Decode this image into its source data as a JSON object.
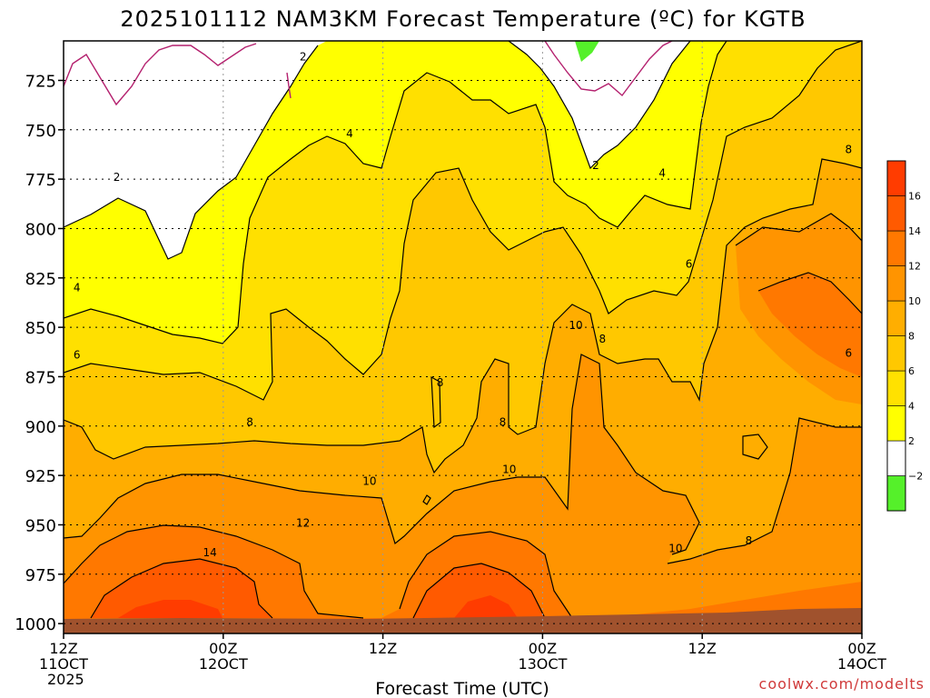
{
  "title": "2025101112 NAM3KM Forecast Temperature (ºC) for KGTB",
  "watermark": "coolwx.com/modelts",
  "chart_data": {
    "type": "heatmap",
    "title": "2025101112 NAM3KM Forecast Temperature (ºC) for KGTB",
    "xlabel": "Forecast Time (UTC)",
    "ylabel": "",
    "y_axis": {
      "ticks": [
        725,
        750,
        775,
        800,
        825,
        850,
        875,
        900,
        925,
        950,
        975,
        1000
      ],
      "range": [
        1005,
        705
      ],
      "inverted": true
    },
    "x_axis": {
      "ticks": [
        {
          "hour": 0,
          "lines": [
            "12Z",
            "11OCT",
            "2025"
          ]
        },
        {
          "hour": 12,
          "lines": [
            "00Z",
            "12OCT"
          ]
        },
        {
          "hour": 24,
          "lines": [
            "12Z"
          ]
        },
        {
          "hour": 36,
          "lines": [
            "00Z",
            "13OCT"
          ]
        },
        {
          "hour": 48,
          "lines": [
            "12Z"
          ]
        },
        {
          "hour": 60,
          "lines": [
            "00Z",
            "14OCT"
          ]
        }
      ],
      "range": [
        0,
        60
      ]
    },
    "grid": true,
    "colorbar": {
      "position": "right",
      "levels": [
        -2,
        2,
        4,
        6,
        8,
        10,
        12,
        14,
        16
      ],
      "colors": [
        "#55f02a",
        "#ffffff",
        "#ffff00",
        "#ffe100",
        "#ffc800",
        "#ffae00",
        "#ff9400",
        "#ff7800",
        "#ff5a00",
        "#ff3c00"
      ],
      "labels": [
        "−2",
        "2",
        "4",
        "6",
        "8",
        "10",
        "12",
        "14",
        "16"
      ]
    },
    "contour_labels": [
      {
        "text": "2",
        "hour": 18,
        "p": 713
      },
      {
        "text": "4",
        "hour": 21.5,
        "p": 752
      },
      {
        "text": "2",
        "hour": 4,
        "p": 774
      },
      {
        "text": "2",
        "hour": 40,
        "p": 768
      },
      {
        "text": "4",
        "hour": 45,
        "p": 772
      },
      {
        "text": "8",
        "hour": 59,
        "p": 760
      },
      {
        "text": "6",
        "hour": 47,
        "p": 818
      },
      {
        "text": "6",
        "hour": 59,
        "p": 863
      },
      {
        "text": "4",
        "hour": 1,
        "p": 830
      },
      {
        "text": "6",
        "hour": 1,
        "p": 864
      },
      {
        "text": "10",
        "hour": 38.5,
        "p": 849
      },
      {
        "text": "8",
        "hour": 40.5,
        "p": 856
      },
      {
        "text": "8",
        "hour": 28.3,
        "p": 878
      },
      {
        "text": "8",
        "hour": 14,
        "p": 898
      },
      {
        "text": "8",
        "hour": 33,
        "p": 898
      },
      {
        "text": "10",
        "hour": 23,
        "p": 928
      },
      {
        "text": "10",
        "hour": 33.5,
        "p": 922
      },
      {
        "text": "12",
        "hour": 18,
        "p": 949
      },
      {
        "text": "14",
        "hour": 11,
        "p": 964
      },
      {
        "text": "10",
        "hour": 46,
        "p": 962
      },
      {
        "text": "8",
        "hour": 51.5,
        "p": 958
      }
    ],
    "terrain_color": "#a0522d"
  }
}
